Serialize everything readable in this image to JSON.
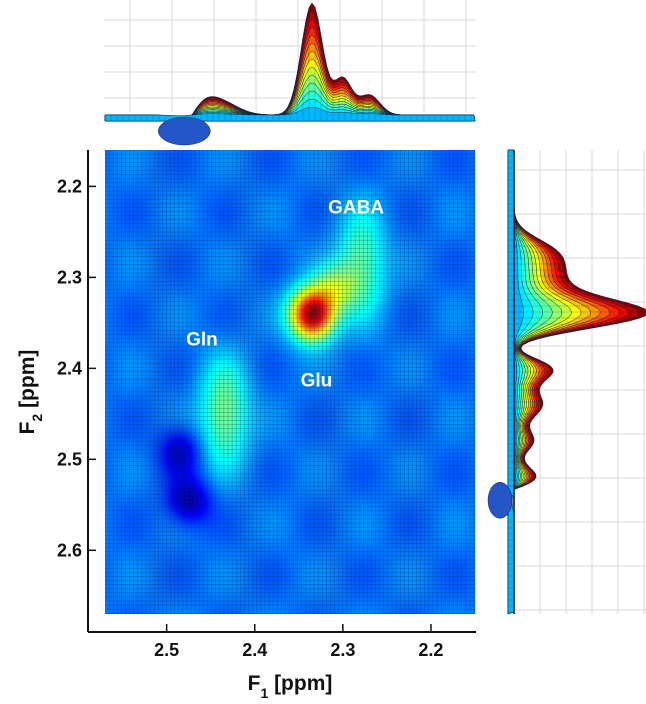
{
  "chart_data": {
    "type": "heatmap",
    "title": "",
    "xlabel": {
      "main": "F",
      "sub": "1",
      "rest": " [ppm]"
    },
    "ylabel": {
      "main": "F",
      "sub": "2",
      "rest": " [ppm]"
    },
    "xlim": [
      2.57,
      2.15
    ],
    "ylim": [
      2.16,
      2.67
    ],
    "xticks": [
      {
        "value": 2.5,
        "label": "2.5"
      },
      {
        "value": 2.4,
        "label": "2.4"
      },
      {
        "value": 2.3,
        "label": "2.3"
      },
      {
        "value": 2.2,
        "label": "2.2"
      }
    ],
    "yticks": [
      {
        "value": 2.2,
        "label": "2.2"
      },
      {
        "value": 2.3,
        "label": "2.3"
      },
      {
        "value": 2.4,
        "label": "2.4"
      },
      {
        "value": 2.5,
        "label": "2.5"
      },
      {
        "value": 2.6,
        "label": "2.6"
      }
    ],
    "colormap": "jet",
    "peaks": [
      {
        "name": "main",
        "f1": 2.335,
        "f2": 2.34,
        "amplitude": 1.0
      },
      {
        "name": "GABA-ridge",
        "f1": 2.28,
        "f2": 2.285,
        "amplitude": 0.32
      },
      {
        "name": "Glu-shoulder",
        "f1": 2.31,
        "f2": 2.31,
        "amplitude": 0.28
      },
      {
        "name": "Gln-ridge",
        "f1": 2.435,
        "f2": 2.45,
        "amplitude": 0.36
      },
      {
        "name": "left-dip-1",
        "f1": 2.485,
        "f2": 2.49,
        "amplitude": -0.22
      },
      {
        "name": "left-dip-2",
        "f1": 2.475,
        "f2": 2.545,
        "amplitude": -0.28
      }
    ],
    "annotations": [
      {
        "text": "GABA",
        "f1": 2.285,
        "f2": 2.23
      },
      {
        "text": "Gln",
        "f1": 2.46,
        "f2": 2.375
      },
      {
        "text": "Glu",
        "f1": 2.33,
        "f2": 2.42
      }
    ],
    "projections": {
      "top": {
        "axis": "F1",
        "description": "1D projection along F1"
      },
      "right": {
        "axis": "F2",
        "description": "1D projection along F2"
      }
    },
    "colors": {
      "background": "#ffffff",
      "axis": "#111111",
      "grid_line": "#0a2a66",
      "label_text": "#ffffff"
    }
  }
}
